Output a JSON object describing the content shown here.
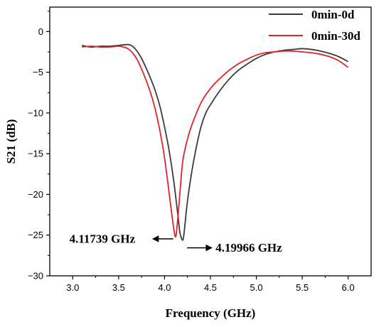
{
  "chart_data": {
    "type": "line",
    "xlabel": "Frequency (GHz)",
    "ylabel": "S21 (dB)",
    "xlim": [
      2.75,
      6.25
    ],
    "ylim": [
      -30,
      3
    ],
    "xticks": [
      "3.0",
      "3.5",
      "4.0",
      "4.5",
      "5.0",
      "5.5",
      "6.0"
    ],
    "yticks": [
      "0",
      "−5",
      "−10",
      "−15",
      "−20",
      "−25",
      "−30"
    ],
    "grid": false,
    "legend_position": "top-right",
    "series": [
      {
        "name": "0min-0d",
        "color": "#3b3b3b",
        "x": [
          3.1,
          3.2,
          3.3,
          3.4,
          3.5,
          3.6,
          3.65,
          3.7,
          3.75,
          3.8,
          3.85,
          3.9,
          3.95,
          4.0,
          4.05,
          4.1,
          4.15,
          4.17,
          4.2,
          4.22,
          4.25,
          4.3,
          4.35,
          4.4,
          4.45,
          4.5,
          4.6,
          4.7,
          4.8,
          4.9,
          5.0,
          5.1,
          5.2,
          5.3,
          5.4,
          5.5,
          5.6,
          5.7,
          5.8,
          5.9,
          6.0
        ],
        "y": [
          -1.7,
          -1.9,
          -1.8,
          -1.8,
          -1.7,
          -1.6,
          -1.8,
          -2.4,
          -3.3,
          -4.5,
          -5.8,
          -7.3,
          -9.2,
          -11.7,
          -14.6,
          -18.3,
          -23.0,
          -24.8,
          -25.6,
          -24.0,
          -20.8,
          -17.0,
          -14.0,
          -11.6,
          -10.0,
          -9.0,
          -7.3,
          -5.9,
          -4.8,
          -4.0,
          -3.3,
          -2.8,
          -2.5,
          -2.3,
          -2.2,
          -2.1,
          -2.2,
          -2.4,
          -2.7,
          -3.1,
          -3.7
        ]
      },
      {
        "name": "0min-30d",
        "color": "#e0222b",
        "x": [
          3.1,
          3.2,
          3.3,
          3.4,
          3.5,
          3.55,
          3.6,
          3.65,
          3.7,
          3.75,
          3.8,
          3.85,
          3.9,
          3.95,
          4.0,
          4.05,
          4.08,
          4.11739,
          4.14,
          4.17,
          4.2,
          4.25,
          4.3,
          4.4,
          4.5,
          4.6,
          4.7,
          4.8,
          4.9,
          5.0,
          5.1,
          5.2,
          5.3,
          5.4,
          5.5,
          5.6,
          5.7,
          5.8,
          5.9,
          6.0
        ],
        "y": [
          -1.9,
          -1.8,
          -1.9,
          -1.9,
          -1.8,
          -1.9,
          -2.1,
          -2.6,
          -3.4,
          -4.6,
          -6.0,
          -7.6,
          -9.6,
          -12.2,
          -15.5,
          -19.8,
          -22.5,
          -25.2,
          -23.5,
          -19.5,
          -15.8,
          -13.2,
          -11.4,
          -8.7,
          -7.0,
          -5.8,
          -4.8,
          -4.0,
          -3.4,
          -2.9,
          -2.6,
          -2.5,
          -2.4,
          -2.4,
          -2.5,
          -2.6,
          -2.8,
          -3.1,
          -3.6,
          -4.4
        ]
      }
    ],
    "annotations": [
      {
        "text": "4.11739 GHz",
        "x": 4.11739,
        "y": -25.2,
        "arrow": "left"
      },
      {
        "text": "4.19966 GHz",
        "x": 4.19966,
        "y": -25.6,
        "arrow": "right"
      }
    ]
  }
}
